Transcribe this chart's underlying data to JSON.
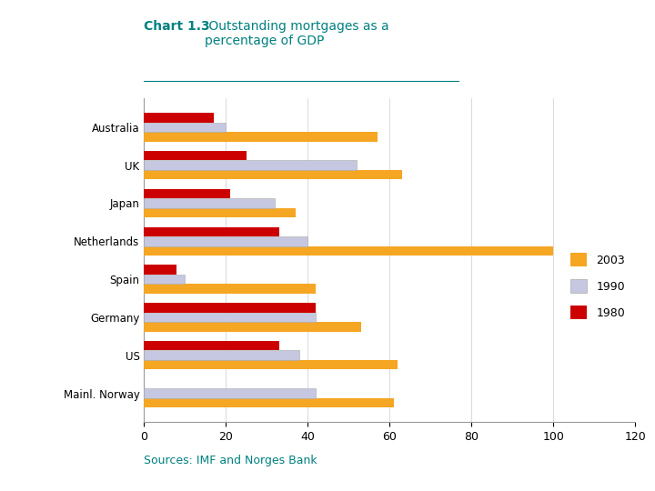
{
  "title_bold": "Chart 1.3",
  "title_rest": " Outstanding mortgages as a\npercentage of GDP",
  "categories": [
    "Australia",
    "UK",
    "Japan",
    "Netherlands",
    "Spain",
    "Germany",
    "US",
    "Mainl. Norway"
  ],
  "data_2003": [
    57,
    63,
    37,
    100,
    42,
    53,
    62,
    61
  ],
  "data_1990": [
    20,
    52,
    32,
    40,
    10,
    42,
    38,
    42
  ],
  "data_1980": [
    17,
    25,
    21,
    33,
    8,
    42,
    33,
    0
  ],
  "color_2003": "#F5A623",
  "color_1990": "#C5C8E0",
  "color_1980": "#CC0000",
  "xlim": [
    0,
    120
  ],
  "xticks": [
    0,
    20,
    40,
    60,
    80,
    100,
    120
  ],
  "source_text": "Sources: IMF and Norges Bank",
  "title_color": "#008080",
  "source_color": "#008080",
  "background_color": "#ffffff",
  "bar_height": 0.25
}
